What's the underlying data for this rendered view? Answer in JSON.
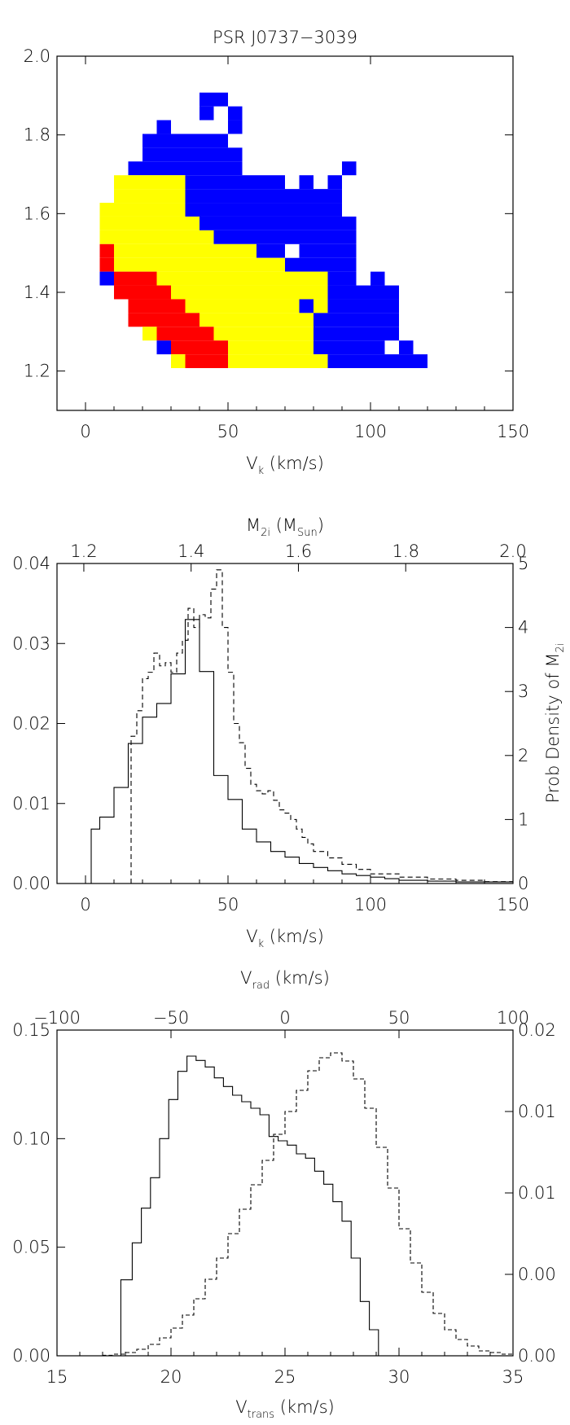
{
  "chart_data": [
    {
      "type": "heatmap",
      "title": "PSR J0737−3039",
      "xlabel": "V",
      "xlabel_sub": "k",
      "xlabel_unit": " (km/s)",
      "ylabel": "",
      "xlim": [
        -10,
        150
      ],
      "ylim": [
        1.1,
        2.0
      ],
      "xticks": [
        0,
        50,
        100,
        150
      ],
      "yticks": [
        1.2,
        1.4,
        1.6,
        1.8,
        2.0
      ],
      "ytick_labels": [
        "1.2",
        "1.4",
        "1.6",
        "1.8",
        "2.0"
      ],
      "colors": {
        "blue": "#0000ff",
        "yellow": "#ffff00",
        "red": "#ff0000"
      },
      "cell_width": 5,
      "cell_height": 0.035,
      "rows": [
        {
          "y": 1.89,
          "cells": [
            [
              40,
              50,
              "blue"
            ]
          ]
        },
        {
          "y": 1.855,
          "cells": [
            [
              40,
              45,
              "blue"
            ],
            [
              50,
              55,
              "blue"
            ]
          ]
        },
        {
          "y": 1.82,
          "cells": [
            [
              25,
              30,
              "blue"
            ],
            [
              50,
              55,
              "blue"
            ]
          ]
        },
        {
          "y": 1.785,
          "cells": [
            [
              20,
              50,
              "blue"
            ]
          ]
        },
        {
          "y": 1.75,
          "cells": [
            [
              20,
              55,
              "blue"
            ]
          ]
        },
        {
          "y": 1.715,
          "cells": [
            [
              15,
              55,
              "blue"
            ],
            [
              90,
              95,
              "blue"
            ]
          ]
        },
        {
          "y": 1.68,
          "cells": [
            [
              10,
              35,
              "yellow"
            ],
            [
              35,
              70,
              "blue"
            ],
            [
              75,
              80,
              "blue"
            ],
            [
              85,
              90,
              "blue"
            ]
          ]
        },
        {
          "y": 1.645,
          "cells": [
            [
              10,
              35,
              "yellow"
            ],
            [
              35,
              90,
              "blue"
            ]
          ]
        },
        {
          "y": 1.61,
          "cells": [
            [
              5,
              35,
              "yellow"
            ],
            [
              35,
              90,
              "blue"
            ]
          ]
        },
        {
          "y": 1.575,
          "cells": [
            [
              5,
              40,
              "yellow"
            ],
            [
              40,
              95,
              "blue"
            ]
          ]
        },
        {
          "y": 1.54,
          "cells": [
            [
              5,
              45,
              "yellow"
            ],
            [
              45,
              95,
              "blue"
            ]
          ]
        },
        {
          "y": 1.505,
          "cells": [
            [
              5,
              10,
              "red"
            ],
            [
              10,
              60,
              "yellow"
            ],
            [
              60,
              70,
              "blue"
            ],
            [
              75,
              95,
              "blue"
            ]
          ]
        },
        {
          "y": 1.47,
          "cells": [
            [
              5,
              10,
              "red"
            ],
            [
              10,
              70,
              "yellow"
            ],
            [
              70,
              95,
              "blue"
            ]
          ]
        },
        {
          "y": 1.435,
          "cells": [
            [
              5,
              10,
              "blue"
            ],
            [
              10,
              25,
              "red"
            ],
            [
              25,
              85,
              "yellow"
            ],
            [
              85,
              95,
              "blue"
            ],
            [
              100,
              105,
              "blue"
            ]
          ]
        },
        {
          "y": 1.4,
          "cells": [
            [
              10,
              30,
              "red"
            ],
            [
              30,
              85,
              "yellow"
            ],
            [
              85,
              110,
              "blue"
            ]
          ]
        },
        {
          "y": 1.365,
          "cells": [
            [
              15,
              35,
              "red"
            ],
            [
              35,
              75,
              "yellow"
            ],
            [
              75,
              80,
              "blue"
            ],
            [
              80,
              85,
              "yellow"
            ],
            [
              85,
              110,
              "blue"
            ]
          ]
        },
        {
          "y": 1.33,
          "cells": [
            [
              15,
              40,
              "red"
            ],
            [
              40,
              80,
              "yellow"
            ],
            [
              80,
              110,
              "blue"
            ]
          ]
        },
        {
          "y": 1.295,
          "cells": [
            [
              20,
              25,
              "yellow"
            ],
            [
              25,
              45,
              "red"
            ],
            [
              45,
              80,
              "yellow"
            ],
            [
              80,
              110,
              "blue"
            ]
          ]
        },
        {
          "y": 1.26,
          "cells": [
            [
              25,
              30,
              "blue"
            ],
            [
              30,
              50,
              "red"
            ],
            [
              50,
              80,
              "yellow"
            ],
            [
              80,
              105,
              "blue"
            ],
            [
              110,
              115,
              "blue"
            ]
          ]
        },
        {
          "y": 1.225,
          "cells": [
            [
              30,
              35,
              "yellow"
            ],
            [
              35,
              50,
              "red"
            ],
            [
              50,
              85,
              "yellow"
            ],
            [
              85,
              120,
              "blue"
            ]
          ]
        }
      ]
    },
    {
      "type": "line",
      "xlabel": "V",
      "xlabel_sub": "k",
      "xlabel_unit": " (km/s)",
      "top_xlabel": "M",
      "top_xlabel_sub": "2i",
      "top_xlabel_unit_open": " (M",
      "top_xlabel_unit_sub": "Sun",
      "top_xlabel_unit_close": ")",
      "right_ylabel": "Prob Density of M",
      "right_ylabel_sub": "2i",
      "xlim": [
        -10,
        150
      ],
      "ylim": [
        0,
        0.04
      ],
      "top_xlim": [
        1.15,
        2.0
      ],
      "right_ylim": [
        0,
        5
      ],
      "xticks": [
        0,
        50,
        100,
        150
      ],
      "yticks": [
        0,
        0.01,
        0.02,
        0.03,
        0.04
      ],
      "ytick_labels": [
        "0.00",
        "0.01",
        "0.02",
        "0.03",
        "0.04"
      ],
      "top_xticks": [
        1.2,
        1.4,
        1.6,
        1.8,
        2.0
      ],
      "top_xtick_labels": [
        "1.2",
        "1.4",
        "1.6",
        "1.8",
        "2.0"
      ],
      "right_yticks": [
        0,
        1,
        2,
        3,
        4,
        5
      ],
      "series": [
        {
          "style": "solid",
          "edges": [
            2,
            5,
            10,
            15,
            20,
            25,
            30,
            35,
            40,
            45,
            50,
            55,
            60,
            65,
            70,
            75,
            80,
            85,
            90,
            95,
            100,
            105,
            110,
            120,
            130,
            150
          ],
          "values": [
            0.0068,
            0.0083,
            0.012,
            0.0175,
            0.0208,
            0.0225,
            0.0262,
            0.033,
            0.0265,
            0.0135,
            0.0105,
            0.0068,
            0.0052,
            0.004,
            0.0033,
            0.0025,
            0.002,
            0.0016,
            0.0012,
            0.001,
            0.0008,
            0.0006,
            0.0004,
            0.0003,
            0.0002
          ]
        },
        {
          "style": "dashed",
          "scale": "right",
          "edges": [
            16,
            18,
            20,
            22,
            24,
            26,
            28,
            30,
            32,
            34,
            36,
            38,
            40,
            42,
            44,
            46,
            48,
            50,
            52,
            54,
            56,
            58,
            60,
            62,
            64,
            66,
            68,
            70,
            72,
            74,
            76,
            78,
            80,
            85,
            90,
            95,
            100,
            110,
            120,
            130,
            140,
            150
          ],
          "values": [
            2.3,
            2.7,
            3.2,
            3.3,
            3.6,
            3.4,
            3.45,
            3.3,
            3.6,
            3.8,
            4.3,
            4.0,
            4.2,
            4.15,
            4.6,
            4.9,
            4.0,
            3.3,
            2.5,
            2.2,
            1.8,
            1.55,
            1.45,
            1.4,
            1.45,
            1.3,
            1.15,
            1.1,
            1.0,
            0.85,
            0.72,
            0.62,
            0.5,
            0.4,
            0.3,
            0.22,
            0.15,
            0.1,
            0.07,
            0.05,
            0.03
          ]
        }
      ]
    },
    {
      "type": "line",
      "xlabel": "V",
      "xlabel_sub": "trans",
      "xlabel_unit": " (km/s)",
      "top_xlabel": "V",
      "top_xlabel_sub": "rad",
      "top_xlabel_unit": " (km/s)",
      "xlim": [
        15,
        35
      ],
      "ylim": [
        0,
        0.15
      ],
      "top_xlim": [
        -100,
        100
      ],
      "right_ylim": [
        0,
        0.02
      ],
      "xticks": [
        15,
        20,
        25,
        30,
        35
      ],
      "yticks": [
        0,
        0.05,
        0.1,
        0.15
      ],
      "ytick_labels": [
        "0.00",
        "0.05",
        "0.10",
        "0.15"
      ],
      "top_xticks": [
        -100,
        -50,
        0,
        50,
        100
      ],
      "top_xtick_labels": [
        "−100",
        "−50",
        "0",
        "50",
        "100"
      ],
      "right_yticks": [
        0,
        0.005,
        0.01,
        0.015,
        0.02
      ],
      "right_ytick_labels": [
        "0.00",
        "0.00",
        "0.01",
        "0.01",
        "0.02"
      ],
      "series": [
        {
          "style": "solid",
          "edges": [
            17.8,
            18.3,
            18.7,
            19.1,
            19.5,
            19.9,
            20.3,
            20.7,
            21.1,
            21.5,
            21.9,
            22.3,
            22.7,
            23.1,
            23.5,
            23.9,
            24.3,
            24.7,
            25.1,
            25.5,
            25.9,
            26.3,
            26.7,
            27.1,
            27.5,
            27.9,
            28.3,
            28.7,
            29.1,
            29.5
          ],
          "values": [
            0.035,
            0.052,
            0.068,
            0.082,
            0.1,
            0.118,
            0.131,
            0.138,
            0.136,
            0.133,
            0.128,
            0.124,
            0.12,
            0.117,
            0.114,
            0.111,
            0.101,
            0.099,
            0.097,
            0.093,
            0.091,
            0.085,
            0.079,
            0.071,
            0.062,
            0.045,
            0.025,
            0.012,
            0.0
          ]
        },
        {
          "style": "dashed",
          "scale": "right",
          "edges": [
            -100,
            -95,
            -90,
            -85,
            -80,
            -75,
            -70,
            -65,
            -60,
            -55,
            -50,
            -45,
            -40,
            -35,
            -30,
            -25,
            -20,
            -15,
            -10,
            -5,
            0,
            5,
            10,
            15,
            20,
            25,
            30,
            35,
            40,
            45,
            50,
            55,
            60,
            65,
            70,
            75,
            80,
            85,
            90,
            95,
            100
          ],
          "values": [
            0.0,
            0.0,
            0.0,
            0.0,
            3e-05,
            0.0001,
            0.0002,
            0.0004,
            0.0007,
            0.0011,
            0.0017,
            0.0025,
            0.0035,
            0.0047,
            0.006,
            0.0075,
            0.009,
            0.0105,
            0.012,
            0.0136,
            0.015,
            0.0163,
            0.0175,
            0.0183,
            0.0186,
            0.0181,
            0.017,
            0.0152,
            0.0128,
            0.0103,
            0.0078,
            0.0057,
            0.0039,
            0.0026,
            0.0016,
            0.001,
            0.0006,
            0.0003,
            0.0002,
            0.0001
          ]
        }
      ]
    }
  ]
}
